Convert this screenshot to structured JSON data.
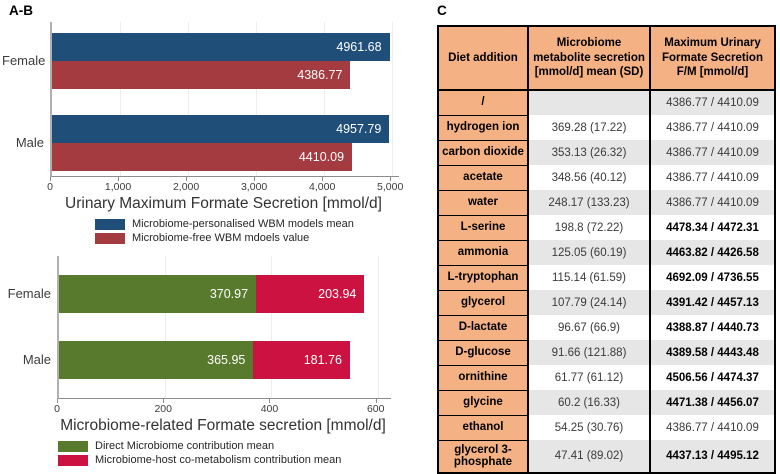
{
  "panel_ab_label": "A-B",
  "panel_c_label": "C",
  "colors": {
    "personalised_blue": "#1F4E79",
    "free_maroon": "#A43B40",
    "direct_green": "#587A2D",
    "cometabolism_crimson": "#CC1240",
    "table_header_orange": "#F4B183",
    "table_row_gray": "#E7E6E6"
  },
  "chart_data": [
    {
      "id": "urinary",
      "type": "bar",
      "orientation": "horizontal",
      "mode": "grouped",
      "categories": [
        "Female",
        "Male"
      ],
      "series": [
        {
          "name": "Microbiome-personalised WBM models mean",
          "color": "#1F4E79",
          "values": [
            4961.68,
            4957.79
          ]
        },
        {
          "name": "Microbiome-free WBM mdoels value",
          "color": "#A43B40",
          "values": [
            4386.77,
            4410.09
          ]
        }
      ],
      "value_labels": [
        [
          "4961.68",
          "4957.79"
        ],
        [
          "4386.77",
          "4410.09"
        ]
      ],
      "xlabel": "Urinary Maximum Formate Secretion [mmol/d]",
      "xticks": [
        0,
        1000,
        2000,
        3000,
        4000,
        5000
      ],
      "xtick_labels": [
        "0",
        "1,000",
        "2,000",
        "3,000",
        "4,000",
        "5,000"
      ],
      "xlim": [
        0,
        5100
      ],
      "grid": true,
      "legend_position": "bottom"
    },
    {
      "id": "microbiome",
      "type": "bar",
      "orientation": "horizontal",
      "mode": "stacked",
      "categories": [
        "Female",
        "Male"
      ],
      "series": [
        {
          "name": "Direct Microbiome contribution mean",
          "color": "#587A2D",
          "values": [
            370.97,
            365.95
          ]
        },
        {
          "name": "Microbiome-host co-metabolism contribution mean",
          "color": "#CC1240",
          "values": [
            203.94,
            181.76
          ]
        }
      ],
      "value_labels": [
        [
          "370.97",
          "365.95"
        ],
        [
          "203.94",
          "181.76"
        ]
      ],
      "xlabel": "Microbiome-related Formate secretion [mmol/d]",
      "xticks": [
        0,
        200,
        400,
        600
      ],
      "xtick_labels": [
        "0",
        "200",
        "400",
        "600"
      ],
      "xlim": [
        0,
        625
      ],
      "grid": true,
      "legend_position": "bottom"
    }
  ],
  "table": {
    "headers": [
      "Diet addition",
      "Microbiome metabolite secretion [mmol/d] mean (SD)",
      "Maximum Urinary Formate Secretion F/M [mmol/d]"
    ],
    "rows": [
      {
        "diet": "/",
        "secretion": "",
        "formate": "4386.77 / 4410.09",
        "bold": false
      },
      {
        "diet": "hydrogen ion",
        "secretion": "369.28 (17.22)",
        "formate": "4386.77 / 4410.09",
        "bold": false
      },
      {
        "diet": "carbon dioxide",
        "secretion": "353.13 (26.32)",
        "formate": "4386.77 / 4410.09",
        "bold": false
      },
      {
        "diet": "acetate",
        "secretion": "348.56 (40.12)",
        "formate": "4386.77 / 4410.09",
        "bold": false
      },
      {
        "diet": "water",
        "secretion": "248.17 (133.23)",
        "formate": "4386.77 / 4410.09",
        "bold": false
      },
      {
        "diet": "L-serine",
        "secretion": "198.8 (72.22)",
        "formate": "4478.34 / 4472.31",
        "bold": true
      },
      {
        "diet": "ammonia",
        "secretion": "125.05 (60.19)",
        "formate": "4463.82 / 4426.58",
        "bold": true
      },
      {
        "diet": "L-tryptophan",
        "secretion": "115.14 (61.59)",
        "formate": "4692.09 / 4736.55",
        "bold": true
      },
      {
        "diet": "glycerol",
        "secretion": "107.79 (24.14)",
        "formate": "4391.42 / 4457.13",
        "bold": true
      },
      {
        "diet": "D-lactate",
        "secretion": "96.67 (66.9)",
        "formate": "4388.87 / 4440.73",
        "bold": true
      },
      {
        "diet": "D-glucose",
        "secretion": "91.66 (121.88)",
        "formate": "4389.58 / 4443.48",
        "bold": true
      },
      {
        "diet": "ornithine",
        "secretion": "61.77 (61.12)",
        "formate": "4506.56 / 4474.37",
        "bold": true
      },
      {
        "diet": "glycine",
        "secretion": "60.2 (16.33)",
        "formate": "4471.38 / 4456.07",
        "bold": true
      },
      {
        "diet": "ethanol",
        "secretion": "54.25 (30.76)",
        "formate": "4386.77 / 4410.09",
        "bold": false
      },
      {
        "diet": "glycerol 3-phosphate",
        "secretion": "47.41 (89.02)",
        "formate": "4437.13 / 4495.12",
        "bold": true
      }
    ]
  }
}
